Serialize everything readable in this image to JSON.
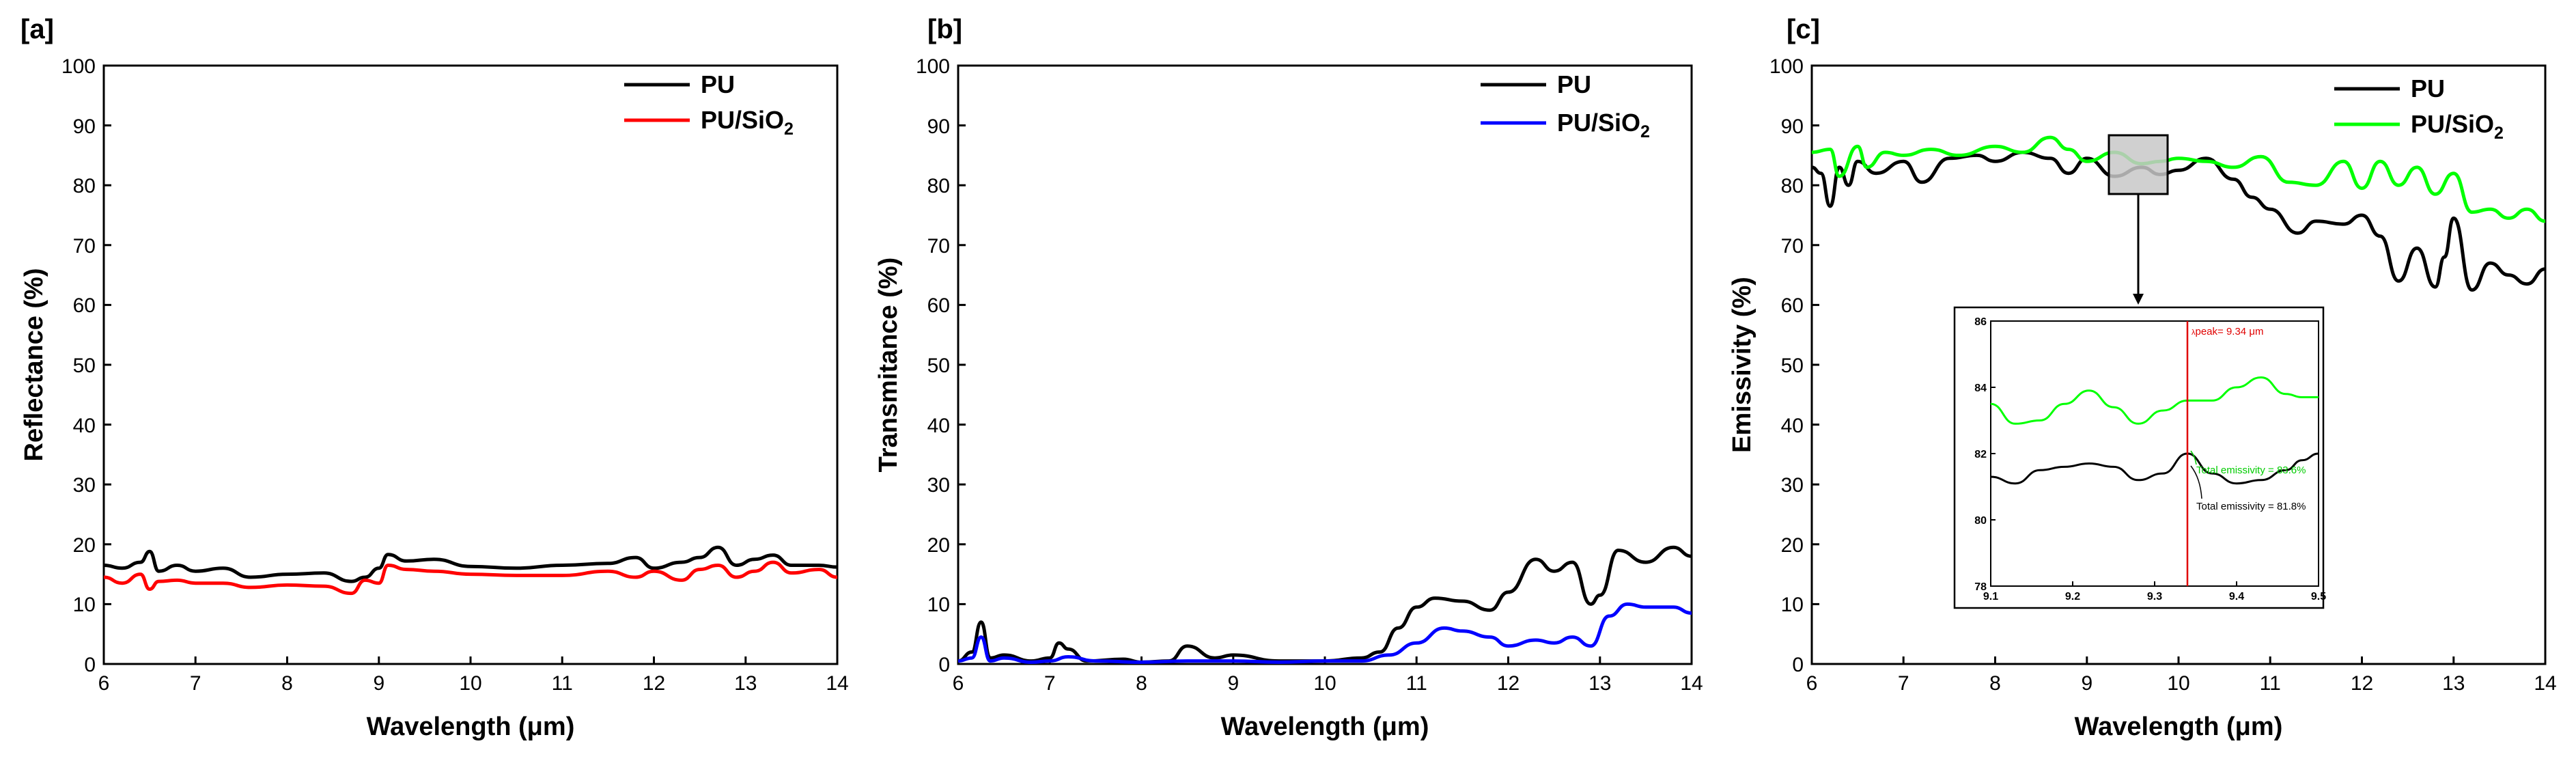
{
  "chart_data": [
    {
      "panel": "[a]",
      "type": "line",
      "xlabel": "Wavelength (μm)",
      "ylabel": "Reflectance (%)",
      "xlim": [
        6,
        14
      ],
      "ylim": [
        0,
        100
      ],
      "x_ticks": [
        6,
        7,
        8,
        9,
        10,
        11,
        12,
        13,
        14
      ],
      "y_ticks": [
        0,
        10,
        20,
        30,
        40,
        50,
        60,
        70,
        80,
        90,
        100
      ],
      "legend_position": "top-right",
      "series": [
        {
          "name": "PU",
          "legend_main": "PU",
          "legend_sub": "",
          "legend_tail": "",
          "color": "#000000",
          "x": [
            6.0,
            6.2,
            6.4,
            6.5,
            6.6,
            6.8,
            7.0,
            7.3,
            7.6,
            8.0,
            8.4,
            8.7,
            8.85,
            9.0,
            9.1,
            9.3,
            9.6,
            10.0,
            10.5,
            11.0,
            11.5,
            11.8,
            12.0,
            12.3,
            12.5,
            12.7,
            12.9,
            13.1,
            13.3,
            13.5,
            13.8,
            14.0
          ],
          "y": [
            16.5,
            16.0,
            17.0,
            18.8,
            15.5,
            16.5,
            15.5,
            16.0,
            14.5,
            15.0,
            15.2,
            13.8,
            14.5,
            16.0,
            18.3,
            17.2,
            17.5,
            16.3,
            16.0,
            16.5,
            16.8,
            17.8,
            16.0,
            17.0,
            17.8,
            19.5,
            16.5,
            17.5,
            18.2,
            16.5,
            16.5,
            16.2
          ]
        },
        {
          "name": "PU/SiO2",
          "legend_main": "PU/SiO",
          "legend_sub": "2",
          "legend_tail": "",
          "color": "#ff0000",
          "x": [
            6.0,
            6.2,
            6.4,
            6.5,
            6.6,
            6.8,
            7.0,
            7.3,
            7.6,
            8.0,
            8.4,
            8.7,
            8.85,
            9.0,
            9.1,
            9.3,
            9.6,
            10.0,
            10.5,
            11.0,
            11.5,
            11.8,
            12.0,
            12.3,
            12.5,
            12.7,
            12.9,
            13.1,
            13.3,
            13.5,
            13.8,
            14.0
          ],
          "y": [
            14.5,
            13.5,
            15.0,
            12.5,
            13.8,
            14.0,
            13.5,
            13.5,
            12.8,
            13.2,
            13.0,
            11.8,
            14.0,
            13.5,
            16.5,
            15.8,
            15.5,
            15.0,
            14.8,
            14.8,
            15.5,
            14.5,
            15.5,
            14.0,
            15.8,
            16.5,
            14.5,
            15.5,
            17.0,
            15.2,
            15.8,
            14.5
          ]
        }
      ]
    },
    {
      "panel": "[b]",
      "type": "line",
      "xlabel": "Wavelength (μm)",
      "ylabel": "Transmitance (%)",
      "xlim": [
        6,
        14
      ],
      "ylim": [
        0,
        100
      ],
      "x_ticks": [
        6,
        7,
        8,
        9,
        10,
        11,
        12,
        13,
        14
      ],
      "y_ticks": [
        0,
        10,
        20,
        30,
        40,
        50,
        60,
        70,
        80,
        90,
        100
      ],
      "legend_position": "top-right",
      "series": [
        {
          "name": "PU",
          "legend_main": "PU",
          "legend_sub": "",
          "legend_tail": "",
          "color": "#000000",
          "x": [
            6.0,
            6.15,
            6.25,
            6.35,
            6.5,
            6.8,
            7.0,
            7.1,
            7.2,
            7.4,
            7.8,
            8.0,
            8.3,
            8.5,
            8.8,
            9.0,
            9.5,
            10.0,
            10.4,
            10.6,
            10.8,
            11.0,
            11.2,
            11.5,
            11.8,
            12.0,
            12.3,
            12.5,
            12.7,
            12.9,
            13.0,
            13.2,
            13.5,
            13.8,
            14.0
          ],
          "y": [
            0.5,
            2.0,
            7.0,
            1.0,
            1.5,
            0.5,
            1.0,
            3.5,
            2.5,
            0.5,
            0.8,
            0.3,
            0.5,
            3.0,
            1.0,
            1.5,
            0.5,
            0.5,
            1.0,
            2.0,
            6.0,
            9.5,
            11.0,
            10.5,
            9.0,
            12.0,
            17.5,
            15.5,
            17.0,
            10.0,
            11.5,
            19.0,
            17.0,
            19.5,
            18.0
          ]
        },
        {
          "name": "PU/SiO2",
          "legend_main": "PU/SiO",
          "legend_sub": "2",
          "legend_tail": "",
          "color": "#0000ff",
          "x": [
            6.0,
            6.15,
            6.25,
            6.35,
            6.5,
            6.8,
            7.0,
            7.2,
            7.5,
            8.0,
            8.5,
            9.0,
            9.5,
            10.0,
            10.4,
            10.7,
            11.0,
            11.3,
            11.5,
            11.8,
            12.0,
            12.3,
            12.5,
            12.7,
            12.9,
            13.1,
            13.3,
            13.5,
            13.8,
            14.0
          ],
          "y": [
            0.5,
            1.0,
            4.5,
            0.5,
            1.0,
            0.3,
            0.5,
            1.2,
            0.5,
            0.3,
            0.5,
            0.5,
            0.3,
            0.5,
            0.5,
            1.5,
            3.5,
            6.0,
            5.5,
            4.5,
            3.0,
            4.0,
            3.5,
            4.5,
            3.0,
            8.0,
            10.0,
            9.5,
            9.5,
            8.5
          ]
        }
      ]
    },
    {
      "panel": "[c]",
      "type": "line",
      "xlabel": "Wavelength (μm)",
      "ylabel": "Emissivity (%)",
      "xlim": [
        6,
        14
      ],
      "ylim": [
        0,
        100
      ],
      "x_ticks": [
        6,
        7,
        8,
        9,
        10,
        11,
        12,
        13,
        14
      ],
      "y_ticks": [
        0,
        10,
        20,
        30,
        40,
        50,
        60,
        70,
        80,
        90,
        100
      ],
      "legend_position": "top-right",
      "series": [
        {
          "name": "PU",
          "legend_main": "PU",
          "legend_sub": "",
          "legend_tail": "",
          "color": "#000000",
          "x": [
            6.0,
            6.1,
            6.2,
            6.3,
            6.4,
            6.5,
            6.7,
            7.0,
            7.2,
            7.5,
            7.8,
            8.0,
            8.3,
            8.6,
            8.8,
            9.0,
            9.3,
            9.6,
            9.8,
            10.0,
            10.3,
            10.6,
            10.8,
            11.0,
            11.3,
            11.5,
            11.8,
            12.0,
            12.2,
            12.4,
            12.6,
            12.8,
            12.9,
            13.0,
            13.2,
            13.4,
            13.6,
            13.8,
            14.0
          ],
          "y": [
            83.0,
            82.0,
            76.5,
            83.0,
            80.0,
            84.0,
            82.0,
            84.0,
            80.5,
            84.5,
            85.0,
            84.0,
            85.5,
            84.5,
            82.0,
            84.5,
            81.5,
            83.0,
            81.8,
            82.5,
            84.5,
            81.0,
            78.0,
            76.0,
            72.0,
            74.0,
            73.5,
            75.0,
            71.5,
            64.0,
            69.5,
            63.0,
            68.0,
            74.5,
            62.5,
            67.0,
            65.0,
            63.5,
            66.0
          ]
        },
        {
          "name": "PU/SiO2",
          "legend_main": "PU/SiO",
          "legend_sub": "2",
          "legend_tail": "",
          "color": "#00ff00",
          "x": [
            6.0,
            6.2,
            6.3,
            6.5,
            6.6,
            6.8,
            7.0,
            7.3,
            7.6,
            8.0,
            8.3,
            8.6,
            8.8,
            9.0,
            9.3,
            9.6,
            9.8,
            10.0,
            10.3,
            10.6,
            10.9,
            11.2,
            11.5,
            11.8,
            12.0,
            12.2,
            12.4,
            12.6,
            12.8,
            13.0,
            13.2,
            13.4,
            13.6,
            13.8,
            14.0
          ],
          "y": [
            85.5,
            86.0,
            81.5,
            86.5,
            83.0,
            85.5,
            85.0,
            86.0,
            85.0,
            86.5,
            85.5,
            88.0,
            86.0,
            84.0,
            85.5,
            83.6,
            84.0,
            84.5,
            84.0,
            83.0,
            84.8,
            80.5,
            80.0,
            84.0,
            79.5,
            84.0,
            80.0,
            83.0,
            78.5,
            82.0,
            75.5,
            76.0,
            74.5,
            76.0,
            74.0
          ]
        }
      ],
      "inset": {
        "xlim": [
          9.1,
          9.5
        ],
        "ylim": [
          78,
          86
        ],
        "x_ticks": [
          9.1,
          9.2,
          9.3,
          9.4,
          9.5
        ],
        "y_ticks": [
          78,
          80,
          82,
          84,
          86
        ],
        "peak_x": 9.34,
        "peak_label": "peak= 9.34 μm",
        "peak_symbol": "λ",
        "green_annotation": "Total emissivity = 83.6%",
        "black_annotation": "Total emissivity = 81.8%",
        "green_curve": {
          "x": [
            9.1,
            9.13,
            9.16,
            9.19,
            9.22,
            9.25,
            9.28,
            9.31,
            9.34,
            9.37,
            9.4,
            9.43,
            9.46,
            9.48,
            9.5
          ],
          "y": [
            83.5,
            82.9,
            83.0,
            83.5,
            83.9,
            83.4,
            82.9,
            83.3,
            83.6,
            83.6,
            84.0,
            84.3,
            83.8,
            83.7,
            83.7
          ]
        },
        "black_curve": {
          "x": [
            9.1,
            9.13,
            9.16,
            9.19,
            9.22,
            9.25,
            9.28,
            9.31,
            9.34,
            9.37,
            9.4,
            9.43,
            9.46,
            9.48,
            9.5
          ],
          "y": [
            81.3,
            81.1,
            81.5,
            81.6,
            81.7,
            81.6,
            81.2,
            81.4,
            82.0,
            81.4,
            81.1,
            81.2,
            81.5,
            81.8,
            82.0
          ]
        }
      }
    }
  ]
}
